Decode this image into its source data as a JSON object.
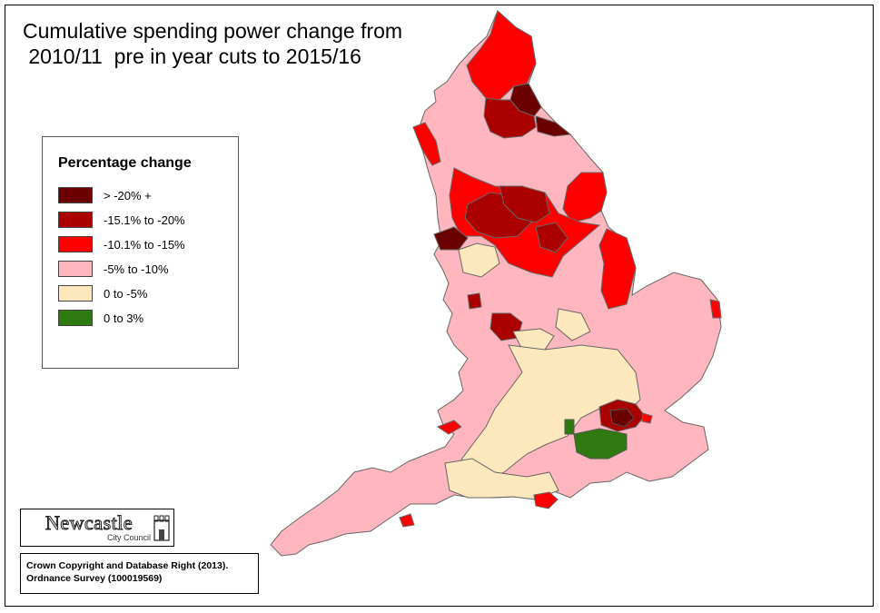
{
  "title_line1": "Cumulative spending power change from",
  "title_line2": " 2010/11  pre in year cuts to 2015/16",
  "legend": {
    "title": "Percentage change",
    "items": [
      {
        "label": "> -20% +",
        "color": "#6b0000"
      },
      {
        "label": "-15.1% to -20%",
        "color": "#aa0000"
      },
      {
        "label": "-10.1% to -15%",
        "color": "#ff0000"
      },
      {
        "label": "-5% to -10%",
        "color": "#ffb6bf"
      },
      {
        "label": "0 to -5%",
        "color": "#fde8bd"
      },
      {
        "label": "0 to 3%",
        "color": "#2e7a10"
      }
    ]
  },
  "logo": {
    "name": "Newcastle",
    "sub": "City Council"
  },
  "copyright": {
    "line1": "Crown Copyright and Database Right (2013).",
    "line2": "Ordnance Survey (100019569)"
  },
  "colors": {
    "border": "#555555",
    "background": "#ffffff"
  }
}
